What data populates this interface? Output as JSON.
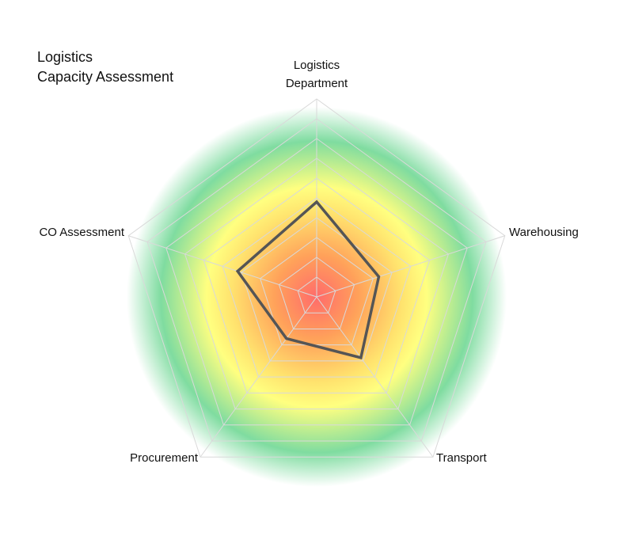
{
  "chart_data": {
    "type": "radar",
    "title_lines": [
      "Logistics",
      "Capacity Assessment"
    ],
    "categories": [
      [
        "Logistics",
        "Department"
      ],
      [
        "Warehousing"
      ],
      [
        "Transport"
      ],
      [
        "Procurement"
      ],
      [
        "CO Assessment"
      ]
    ],
    "series": [
      {
        "values": [
          4.8,
          3.3,
          3.8,
          2.6,
          4.2
        ]
      }
    ],
    "rmin": 0,
    "rmax": 10,
    "gridlines": 10,
    "grid": true,
    "legend": "none",
    "background": "radial gradient red-orange-yellow-green",
    "colors": {
      "series_line": "#555555",
      "grid": "#d9d9d9",
      "gradient": [
        "#ff6b6b",
        "#ffa15a",
        "#ffe36e",
        "#ffff80",
        "#7fdca0",
        "#ffffff"
      ]
    }
  }
}
